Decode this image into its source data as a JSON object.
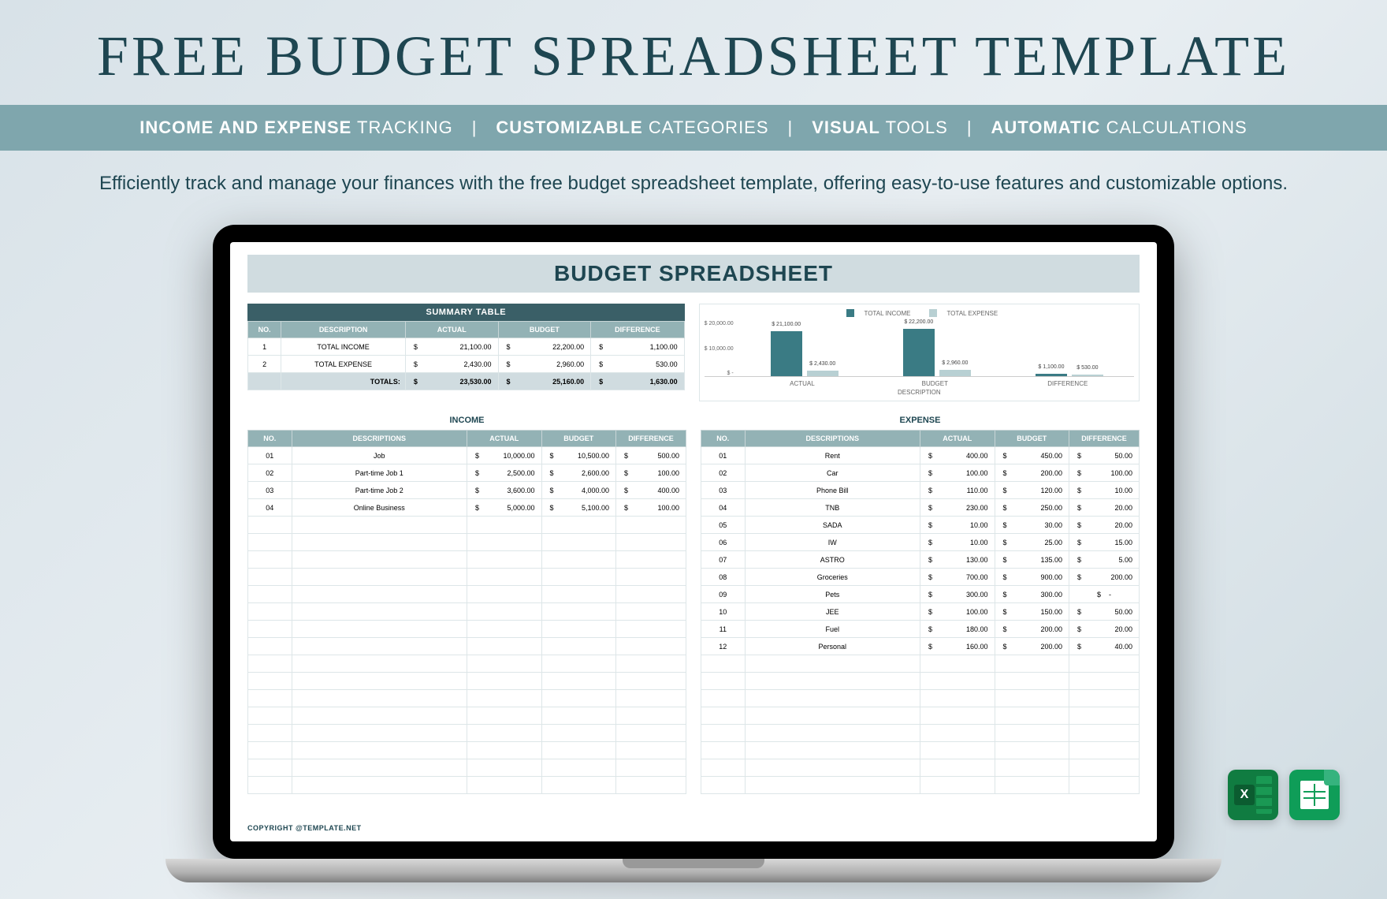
{
  "page": {
    "title": "FREE  BUDGET SPREADSHEET TEMPLATE",
    "features": [
      {
        "bold": "INCOME AND EXPENSE",
        "rest": " TRACKING"
      },
      {
        "bold": "CUSTOMIZABLE",
        "rest": " CATEGORIES"
      },
      {
        "bold": "VISUAL",
        "rest": " TOOLS"
      },
      {
        "bold": "AUTOMATIC",
        "rest": " CALCULATIONS"
      }
    ],
    "subtitle": "Efficiently track and manage your finances with the free budget spreadsheet template, offering easy-to-use features and customizable options.",
    "title_color": "#1e4651",
    "feature_bar_bg": "#7fa6ad",
    "body_bg": "#e0e8ec"
  },
  "sheet": {
    "title": "BUDGET SPREADSHEET",
    "copyright": "COPYRIGHT @TEMPLATE.NET",
    "header_bg": "#d0dce0",
    "section_bg": "#3a5f67",
    "th_bg": "#93b2b5",
    "accent_color": "#1e4651"
  },
  "summary": {
    "heading": "SUMMARY TABLE",
    "columns": [
      "NO.",
      "DESCRIPTION",
      "ACTUAL",
      "BUDGET",
      "DIFFERENCE"
    ],
    "rows": [
      {
        "no": "1",
        "desc": "TOTAL INCOME",
        "actual": "21,100.00",
        "budget": "22,200.00",
        "diff": "1,100.00"
      },
      {
        "no": "2",
        "desc": "TOTAL EXPENSE",
        "actual": "2,430.00",
        "budget": "2,960.00",
        "diff": "530.00"
      }
    ],
    "totals": {
      "label": "TOTALS:",
      "actual": "23,530.00",
      "budget": "25,160.00",
      "diff": "1,630.00"
    }
  },
  "chart": {
    "type": "bar",
    "legend": [
      {
        "label": "TOTAL INCOME",
        "color": "#3a7b84"
      },
      {
        "label": "TOTAL EXPENSE",
        "color": "#b8d0d3"
      }
    ],
    "y_ticks": [
      "$ 20,000.00",
      "$ 10,000.00",
      "$ -"
    ],
    "ylim": [
      0,
      22200
    ],
    "x_title": "DESCRIPTION",
    "groups": [
      {
        "cat": "ACTUAL",
        "income": 21100,
        "expense": 2430,
        "income_label": "$ 21,100.00",
        "expense_label": "$ 2,430.00"
      },
      {
        "cat": "BUDGET",
        "income": 22200,
        "expense": 2960,
        "income_label": "$ 22,200.00",
        "expense_label": "$ 2,960.00"
      },
      {
        "cat": "DIFFERENCE",
        "income": 1100,
        "expense": 530,
        "income_label": "$ 1,100.00",
        "expense_label": "$ 530.00"
      }
    ]
  },
  "income": {
    "heading": "INCOME",
    "columns": [
      "NO.",
      "DESCRIPTIONS",
      "ACTUAL",
      "BUDGET",
      "DIFFERENCE"
    ],
    "rows": [
      {
        "no": "01",
        "desc": "Job",
        "actual": "10,000.00",
        "budget": "10,500.00",
        "diff": "500.00"
      },
      {
        "no": "02",
        "desc": "Part-time Job 1",
        "actual": "2,500.00",
        "budget": "2,600.00",
        "diff": "100.00"
      },
      {
        "no": "03",
        "desc": "Part-time Job 2",
        "actual": "3,600.00",
        "budget": "4,000.00",
        "diff": "400.00"
      },
      {
        "no": "04",
        "desc": "Online Business",
        "actual": "5,000.00",
        "budget": "5,100.00",
        "diff": "100.00"
      }
    ],
    "blank_rows": 16
  },
  "expense": {
    "heading": "EXPENSE",
    "columns": [
      "NO.",
      "DESCRIPTIONS",
      "ACTUAL",
      "BUDGET",
      "DIFFERENCE"
    ],
    "rows": [
      {
        "no": "01",
        "desc": "Rent",
        "actual": "400.00",
        "budget": "450.00",
        "diff": "50.00"
      },
      {
        "no": "02",
        "desc": "Car",
        "actual": "100.00",
        "budget": "200.00",
        "diff": "100.00"
      },
      {
        "no": "03",
        "desc": "Phone Bill",
        "actual": "110.00",
        "budget": "120.00",
        "diff": "10.00"
      },
      {
        "no": "04",
        "desc": "TNB",
        "actual": "230.00",
        "budget": "250.00",
        "diff": "20.00"
      },
      {
        "no": "05",
        "desc": "SADA",
        "actual": "10.00",
        "budget": "30.00",
        "diff": "20.00"
      },
      {
        "no": "06",
        "desc": "IW",
        "actual": "10.00",
        "budget": "25.00",
        "diff": "15.00"
      },
      {
        "no": "07",
        "desc": "ASTRO",
        "actual": "130.00",
        "budget": "135.00",
        "diff": "5.00"
      },
      {
        "no": "08",
        "desc": "Groceries",
        "actual": "700.00",
        "budget": "900.00",
        "diff": "200.00"
      },
      {
        "no": "09",
        "desc": "Pets",
        "actual": "300.00",
        "budget": "300.00",
        "diff": "-"
      },
      {
        "no": "10",
        "desc": "JEE",
        "actual": "100.00",
        "budget": "150.00",
        "diff": "50.00"
      },
      {
        "no": "11",
        "desc": "Fuel",
        "actual": "180.00",
        "budget": "200.00",
        "diff": "20.00"
      },
      {
        "no": "12",
        "desc": "Personal",
        "actual": "160.00",
        "budget": "200.00",
        "diff": "40.00"
      }
    ],
    "blank_rows": 8
  },
  "file_icons": {
    "excel_color": "#107c41",
    "sheets_color": "#0f9d58"
  }
}
